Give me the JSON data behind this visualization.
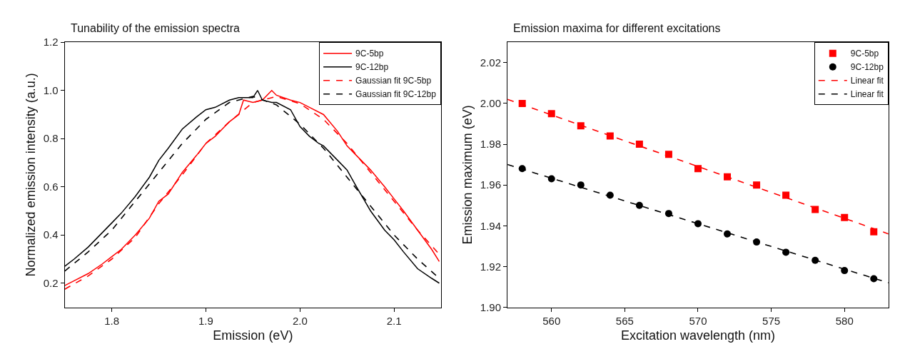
{
  "chart_data": [
    {
      "type": "line",
      "title": "Tunability of the emission spectra",
      "xlabel": "Emission (eV)",
      "ylabel": "Normalized emission intensity (a.u.)",
      "xlim": [
        1.75,
        2.15
      ],
      "xticks": [
        1.8,
        1.9,
        {
          "value": 2.0,
          "label": "2.0"
        },
        2.1
      ],
      "ylim": [
        0.1,
        1.2
      ],
      "yticks": [
        0.2,
        0.4,
        0.6,
        0.8,
        {
          "value": 1.0,
          "label": "1.0"
        },
        1.2
      ],
      "legend": "top right",
      "series": [
        {
          "name": "9C-5bp",
          "color": "#ff0000",
          "line_style": "solid",
          "marker": "none",
          "x": [
            1.75,
            1.76,
            1.775,
            1.79,
            1.8,
            1.81,
            1.825,
            1.84,
            1.85,
            1.86,
            1.875,
            1.89,
            1.9,
            1.91,
            1.925,
            1.935,
            1.94,
            1.95,
            1.96,
            1.97,
            1.975,
            1.99,
            2.0,
            2.01,
            2.025,
            2.04,
            2.05,
            2.06,
            2.075,
            2.09,
            2.1,
            2.11,
            2.125,
            2.14,
            2.148
          ],
          "values": [
            0.19,
            0.21,
            0.24,
            0.28,
            0.31,
            0.34,
            0.4,
            0.47,
            0.54,
            0.57,
            0.66,
            0.73,
            0.78,
            0.81,
            0.87,
            0.9,
            0.96,
            0.95,
            0.96,
            1.0,
            0.98,
            0.96,
            0.95,
            0.93,
            0.9,
            0.83,
            0.77,
            0.73,
            0.67,
            0.6,
            0.55,
            0.5,
            0.42,
            0.34,
            0.29
          ]
        },
        {
          "name": "9C-12bp",
          "color": "#000000",
          "line_style": "solid",
          "marker": "none",
          "x": [
            1.75,
            1.76,
            1.775,
            1.79,
            1.8,
            1.81,
            1.825,
            1.84,
            1.85,
            1.86,
            1.875,
            1.89,
            1.9,
            1.91,
            1.925,
            1.935,
            1.94,
            1.95,
            1.955,
            1.96,
            1.97,
            1.975,
            1.99,
            2.0,
            2.01,
            2.02,
            2.025,
            2.04,
            2.05,
            2.06,
            2.075,
            2.09,
            2.1,
            2.11,
            2.125,
            2.14,
            2.148
          ],
          "values": [
            0.27,
            0.3,
            0.35,
            0.41,
            0.45,
            0.49,
            0.56,
            0.64,
            0.71,
            0.76,
            0.84,
            0.89,
            0.92,
            0.93,
            0.96,
            0.97,
            0.97,
            0.97,
            1.0,
            0.96,
            0.95,
            0.95,
            0.92,
            0.85,
            0.81,
            0.78,
            0.77,
            0.71,
            0.67,
            0.6,
            0.5,
            0.42,
            0.38,
            0.33,
            0.26,
            0.22,
            0.2
          ]
        },
        {
          "name": "Gaussian fit 9C-5bp",
          "color": "#ff0000",
          "line_style": "dashed",
          "marker": "none",
          "x": [
            1.75,
            1.775,
            1.8,
            1.825,
            1.85,
            1.875,
            1.9,
            1.925,
            1.95,
            1.975,
            2.0,
            2.025,
            2.05,
            2.075,
            2.1,
            2.125,
            2.148
          ],
          "values": [
            0.175,
            0.23,
            0.3,
            0.39,
            0.53,
            0.65,
            0.78,
            0.87,
            0.95,
            0.975,
            0.945,
            0.88,
            0.78,
            0.66,
            0.54,
            0.42,
            0.32
          ]
        },
        {
          "name": "Gaussian fit 9C-12bp",
          "color": "#000000",
          "line_style": "dashed",
          "marker": "none",
          "x": [
            1.75,
            1.775,
            1.8,
            1.825,
            1.85,
            1.875,
            1.9,
            1.925,
            1.95,
            1.975,
            2.0,
            2.025,
            2.05,
            2.075,
            2.1,
            2.125,
            2.148
          ],
          "values": [
            0.25,
            0.33,
            0.42,
            0.54,
            0.66,
            0.78,
            0.88,
            0.95,
            0.975,
            0.94,
            0.86,
            0.76,
            0.64,
            0.52,
            0.4,
            0.3,
            0.22
          ]
        }
      ]
    },
    {
      "type": "scatter",
      "title": "Emission maxima for different excitations",
      "xlabel": "Excitation wavelength (nm)",
      "ylabel": "Emission maximum (eV)",
      "xlim": [
        557,
        583
      ],
      "xticks": [
        560,
        565,
        570,
        575,
        580
      ],
      "ylim": [
        1.9,
        2.03
      ],
      "yticks": [
        {
          "value": 1.9,
          "label": "1.90"
        },
        {
          "value": 1.92,
          "label": "1.92"
        },
        {
          "value": 1.94,
          "label": "1.94"
        },
        {
          "value": 1.96,
          "label": "1.96"
        },
        {
          "value": 1.98,
          "label": "1.98"
        },
        {
          "value": 2.0,
          "label": "2.00"
        },
        {
          "value": 2.02,
          "label": "2.02"
        }
      ],
      "legend": "top right",
      "series": [
        {
          "name": "9C-5bp",
          "color": "#ff0000",
          "marker": "square",
          "x": [
            558,
            560,
            562,
            564,
            566,
            568,
            570,
            572,
            574,
            576,
            578,
            580,
            582
          ],
          "values": [
            2.0,
            1.995,
            1.989,
            1.984,
            1.98,
            1.975,
            1.968,
            1.964,
            1.96,
            1.955,
            1.948,
            1.944,
            1.937
          ]
        },
        {
          "name": "9C-12bp",
          "color": "#000000",
          "marker": "circle",
          "x": [
            558,
            560,
            562,
            564,
            566,
            568,
            570,
            572,
            574,
            576,
            578,
            580,
            582
          ],
          "values": [
            1.968,
            1.963,
            1.96,
            1.955,
            1.95,
            1.946,
            1.941,
            1.936,
            1.932,
            1.927,
            1.923,
            1.918,
            1.914
          ]
        },
        {
          "name": "Linear fit",
          "type": "line",
          "color": "#ff0000",
          "line_style": "dashed",
          "marker": "none",
          "x": [
            557,
            583
          ],
          "values": [
            2.002,
            1.936
          ]
        },
        {
          "name": "Linear fit",
          "type": "line",
          "color": "#000000",
          "line_style": "dashed",
          "marker": "none",
          "x": [
            557,
            583
          ],
          "values": [
            1.97,
            1.912
          ]
        }
      ]
    }
  ]
}
